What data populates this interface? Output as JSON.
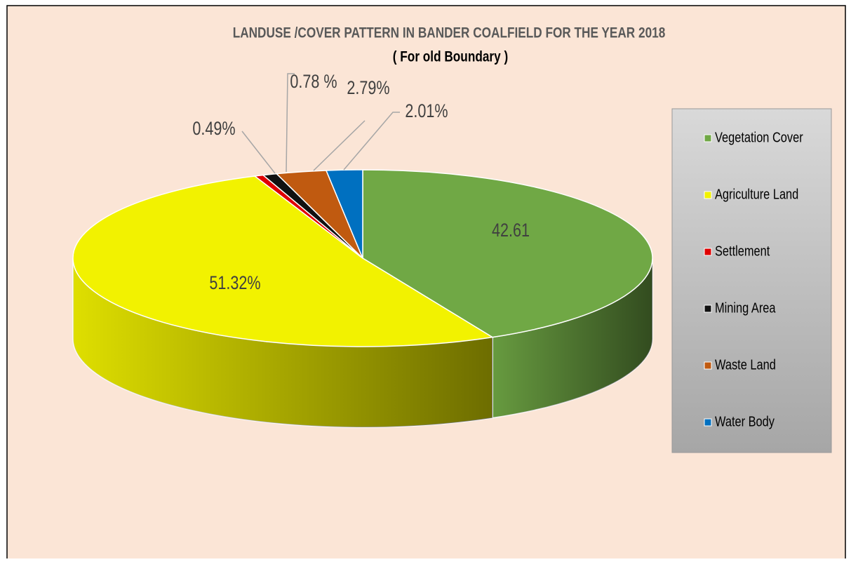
{
  "chart_data": {
    "type": "pie",
    "title": "LANDUSE /COVER PATTERN IN BANDER COALFIELD FOR THE YEAR 2018",
    "subtitle": "( For old Boundary )",
    "categories": [
      "Vegetation Cover",
      "Agriculture Land",
      "Settlement",
      "Mining Area",
      "Waste Land",
      "Water Body"
    ],
    "values": [
      42.61,
      51.32,
      0.49,
      0.78,
      2.79,
      2.01
    ],
    "value_labels": [
      "42.61",
      "51.32%",
      "0.49%",
      "0.78 %",
      "2.79%",
      "2.01%"
    ],
    "colors": [
      "#70a845",
      "#f2f200",
      "#e00000",
      "#111111",
      "#c05a10",
      "#0070c0"
    ],
    "legend": "right"
  }
}
